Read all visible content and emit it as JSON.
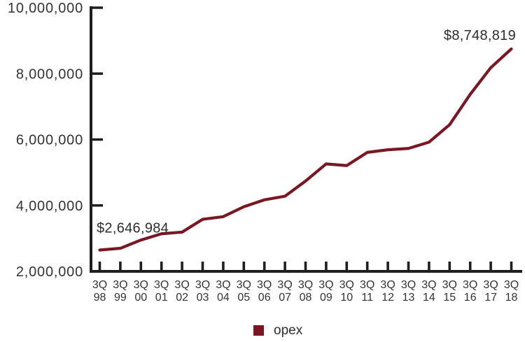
{
  "page": {
    "background": "#ffffff"
  },
  "chart_data": {
    "type": "line",
    "title": "",
    "xlabel": "",
    "ylabel": "",
    "categories": [
      "3Q 98",
      "3Q 99",
      "3Q 00",
      "3Q 01",
      "3Q 02",
      "3Q 03",
      "3Q 04",
      "3Q 05",
      "3Q 06",
      "3Q 07",
      "3Q 08",
      "3Q 09",
      "3Q 10",
      "3Q 11",
      "3Q 12",
      "3Q 13",
      "3Q 14",
      "3Q 15",
      "3Q 16",
      "3Q 17",
      "3Q 18"
    ],
    "series": [
      {
        "name": "opex",
        "color": "#7a1722",
        "values": [
          2646984,
          2700000,
          2950000,
          3140000,
          3190000,
          3580000,
          3660000,
          3960000,
          4170000,
          4280000,
          4740000,
          5260000,
          5210000,
          5610000,
          5690000,
          5730000,
          5920000,
          6450000,
          7370000,
          8180000,
          8748819
        ]
      }
    ],
    "ylim": [
      2000000,
      10000000
    ],
    "y_ticks": [
      2000000,
      4000000,
      6000000,
      8000000,
      10000000
    ],
    "y_tick_labels": [
      "2,000,000",
      "4,000,000",
      "6,000,000",
      "8,000,000",
      "10,000,000"
    ],
    "grid": false,
    "annotations": [
      {
        "text": "$2,646,984",
        "point_index": 0,
        "anchor": "start"
      },
      {
        "text": "$8,748,819",
        "point_index": 20,
        "anchor": "end"
      }
    ],
    "legend": {
      "position": "bottom-center",
      "entries": [
        {
          "label": "opex",
          "color": "#7a1722"
        }
      ]
    },
    "style": {
      "axis_color": "#1f1f1f",
      "text_color": "#333333",
      "annotation_color": "#2d2d2d"
    }
  }
}
